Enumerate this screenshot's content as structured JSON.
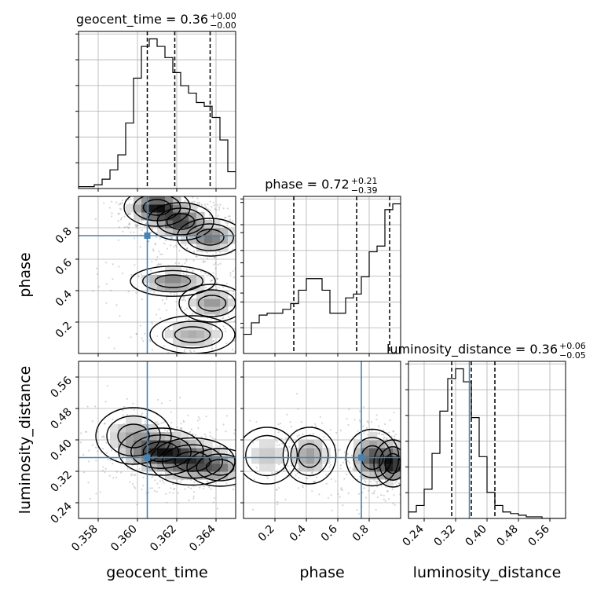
{
  "chart_data": {
    "type": "corner",
    "parameters": [
      "geocent_time",
      "phase",
      "luminosity_distance"
    ],
    "truths": {
      "geocent_time": 0.3605,
      "phase": 0.75,
      "luminosity_distance": 0.355
    },
    "colors": {
      "truth": "#4682b4",
      "line": "#000000",
      "grid": "#b0b0b0"
    },
    "titles": [
      {
        "param": "geocent_time",
        "name": "geocent_time",
        "median": "0.36",
        "plus": "+0.00",
        "minus": "−0.00"
      },
      {
        "param": "phase",
        "name": "phase",
        "median": "0.72",
        "plus": "+0.21",
        "minus": "−0.39"
      },
      {
        "param": "luminosity_distance",
        "name": "luminosity_distance",
        "median": "0.36",
        "plus": "+0.06",
        "minus": "−0.05"
      }
    ],
    "axes": {
      "geocent_time": {
        "range": [
          0.357,
          0.365
        ],
        "ticks": [
          0.358,
          0.36,
          0.362,
          0.364
        ],
        "tick_labels": [
          "0.358",
          "0.360",
          "0.362",
          "0.364"
        ]
      },
      "phase": {
        "range": [
          0.0,
          1.0
        ],
        "ticks": [
          0.2,
          0.4,
          0.6,
          0.8
        ],
        "tick_labels": [
          "0.2",
          "0.4",
          "0.6",
          "0.8"
        ]
      },
      "luminosity_distance": {
        "range": [
          0.2,
          0.6
        ],
        "ticks": [
          0.24,
          0.32,
          0.4,
          0.48,
          0.56
        ],
        "tick_labels": [
          "0.24",
          "0.32",
          "0.40",
          "0.48",
          "0.56"
        ]
      }
    },
    "axis_labels": {
      "x": [
        "geocent_time",
        "phase",
        "luminosity_distance"
      ],
      "y": [
        "phase",
        "luminosity_distance"
      ]
    },
    "quantiles": {
      "geocent_time": [
        0.3605,
        0.3619,
        0.3637
      ],
      "phase": [
        0.32,
        0.72,
        0.93
      ],
      "luminosity_distance": [
        0.31,
        0.36,
        0.42
      ]
    },
    "histograms": {
      "geocent_time": {
        "edges_start": 0.357,
        "bin_width": 0.0004,
        "counts": [
          1,
          1,
          2,
          5,
          10,
          18,
          35,
          59,
          76,
          80,
          76,
          70,
          62,
          55,
          51,
          46,
          44,
          38,
          26,
          9
        ]
      },
      "phase": {
        "edges_start": 0.0,
        "bin_width": 0.05,
        "counts": [
          10,
          16,
          20,
          21,
          21,
          23,
          26,
          33,
          39,
          39,
          33,
          21,
          21,
          29,
          31,
          40,
          53,
          56,
          75,
          78
        ]
      },
      "luminosity_distance": {
        "edges_start": 0.2,
        "bin_width": 0.02,
        "counts": [
          4,
          8,
          18,
          40,
          66,
          86,
          92,
          84,
          62,
          38,
          16,
          8,
          4,
          3,
          2,
          1,
          1,
          0,
          0,
          0
        ]
      }
    },
    "density_2d": [
      {
        "x": "geocent_time",
        "y": "phase",
        "blobs": [
          {
            "x": 0.361,
            "y": 0.93,
            "sx": 0.0007,
            "sy": 0.05,
            "w": 1.0
          },
          {
            "x": 0.3622,
            "y": 0.84,
            "sx": 0.0007,
            "sy": 0.05,
            "w": 0.8
          },
          {
            "x": 0.3637,
            "y": 0.74,
            "sx": 0.0007,
            "sy": 0.05,
            "w": 0.6
          },
          {
            "x": 0.3618,
            "y": 0.46,
            "sx": 0.0009,
            "sy": 0.04,
            "w": 0.55
          },
          {
            "x": 0.3638,
            "y": 0.32,
            "sx": 0.0007,
            "sy": 0.05,
            "w": 0.45
          },
          {
            "x": 0.3628,
            "y": 0.12,
            "sx": 0.0009,
            "sy": 0.05,
            "w": 0.35
          }
        ]
      },
      {
        "x": "geocent_time",
        "y": "luminosity_distance",
        "blobs": [
          {
            "x": 0.3612,
            "y": 0.37,
            "sx": 0.0009,
            "sy": 0.025,
            "w": 1.0
          },
          {
            "x": 0.3628,
            "y": 0.345,
            "sx": 0.0009,
            "sy": 0.025,
            "w": 0.85
          },
          {
            "x": 0.3642,
            "y": 0.33,
            "sx": 0.0007,
            "sy": 0.02,
            "w": 0.5
          },
          {
            "x": 0.3598,
            "y": 0.41,
            "sx": 0.0008,
            "sy": 0.03,
            "w": 0.4
          }
        ]
      },
      {
        "x": "phase",
        "y": "luminosity_distance",
        "blobs": [
          {
            "x": 0.95,
            "y": 0.34,
            "sx": 0.05,
            "sy": 0.025,
            "w": 1.0
          },
          {
            "x": 0.82,
            "y": 0.355,
            "sx": 0.07,
            "sy": 0.03,
            "w": 0.8
          },
          {
            "x": 0.42,
            "y": 0.36,
            "sx": 0.07,
            "sy": 0.03,
            "w": 0.45
          },
          {
            "x": 0.15,
            "y": 0.36,
            "sx": 0.08,
            "sy": 0.03,
            "w": 0.25
          }
        ]
      }
    ]
  }
}
